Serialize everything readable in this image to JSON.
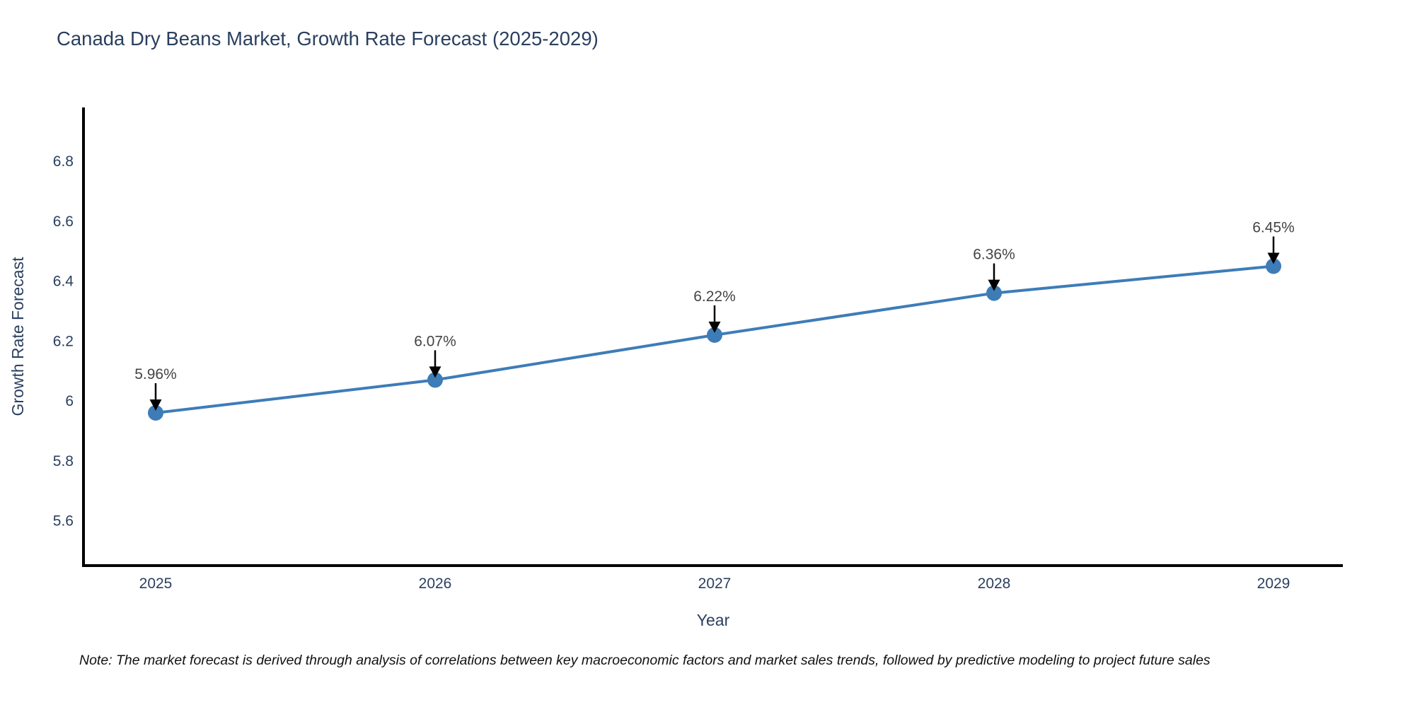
{
  "chart_data": {
    "type": "line",
    "title": "Canada Dry Beans Market, Growth Rate Forecast (2025-2029)",
    "xlabel": "Year",
    "ylabel": "Growth Rate Forecast",
    "categories": [
      "2025",
      "2026",
      "2027",
      "2028",
      "2029"
    ],
    "series": [
      {
        "name": "Growth Rate Forecast",
        "values": [
          5.96,
          6.07,
          6.22,
          6.36,
          6.45
        ]
      }
    ],
    "point_labels": [
      "5.96%",
      "6.07%",
      "6.22%",
      "6.36%",
      "6.45%"
    ],
    "yticks": [
      6.8,
      6.6,
      6.4,
      6.2,
      6,
      5.8,
      5.6
    ],
    "ylim": [
      5.45,
      6.98
    ],
    "grid": false,
    "legend": "none",
    "line_color": "#3E7CB8",
    "marker_color": "#3E7CB8",
    "axis_color": "#000000",
    "arrow_color": "#000000",
    "note": "Note: The market forecast is derived through analysis of correlations between key macroeconomic factors and market sales trends, followed by predictive modeling to project future sales"
  }
}
